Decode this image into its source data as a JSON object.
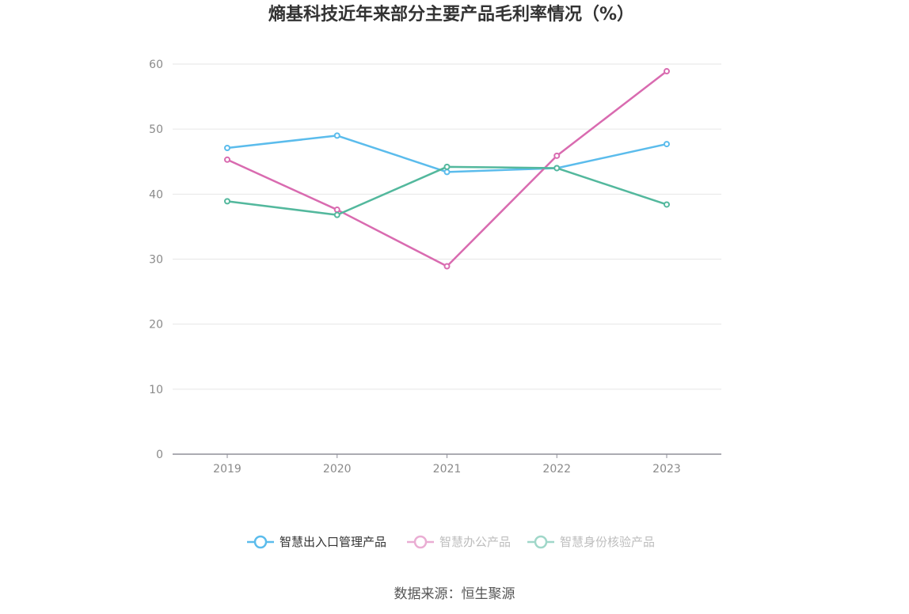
{
  "chart_data": {
    "type": "line",
    "title": "熵基科技近年来部分主要产品毛利率情况（%）",
    "xlabel": "",
    "ylabel": "",
    "categories": [
      "2019",
      "2020",
      "2021",
      "2022",
      "2023"
    ],
    "ylim": [
      0,
      60
    ],
    "yticks": [
      0,
      10,
      20,
      30,
      40,
      50,
      60
    ],
    "grid": true,
    "legend_position": "bottom",
    "series": [
      {
        "name": "智慧出入口管理产品",
        "color": "#5bbcec",
        "values": [
          47.1,
          49.0,
          43.4,
          44.0,
          47.7
        ]
      },
      {
        "name": "智慧办公产品",
        "color": "#d96bb0",
        "values": [
          45.3,
          37.6,
          28.9,
          45.9,
          58.9
        ]
      },
      {
        "name": "智慧身份核验产品",
        "color": "#53b89d",
        "values": [
          38.9,
          36.8,
          44.2,
          44.0,
          38.4
        ]
      }
    ],
    "legend_text_colors": [
      "#333333",
      "#888888",
      "#888888"
    ],
    "legend_faded": [
      false,
      true,
      true
    ]
  },
  "footer": {
    "source": "数据来源：恒生聚源"
  }
}
